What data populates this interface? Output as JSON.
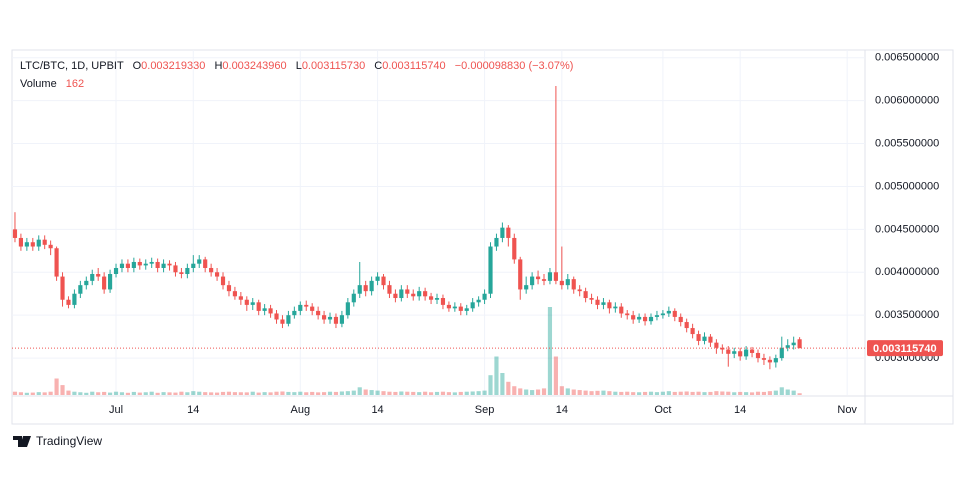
{
  "chart_data": {
    "type": "candlestick",
    "legend": {
      "symbol": "LTC/BTC, 1D, UPBIT",
      "o_label": "O",
      "o": "0.003219330",
      "h_label": "H",
      "h": "0.003243960",
      "l_label": "L",
      "l": "0.003115730",
      "c_label": "C",
      "c": "0.003115740",
      "change": "−0.000098830 (−3.07%)",
      "volume_label": "Volume",
      "volume": "162"
    },
    "branding": "TradingView",
    "up_color": "#26a69a",
    "down_color": "#ef5350",
    "grid": true,
    "xlim": [
      -0.5,
      143
    ],
    "xticks": [
      {
        "value": 17,
        "label": "Jul"
      },
      {
        "value": 30,
        "label": "14"
      },
      {
        "value": 48,
        "label": "Aug"
      },
      {
        "value": 61,
        "label": "14"
      },
      {
        "value": 79,
        "label": "Sep"
      },
      {
        "value": 92,
        "label": "14"
      },
      {
        "value": 109,
        "label": "Oct"
      },
      {
        "value": 122,
        "label": "14"
      },
      {
        "value": 140,
        "label": "Nov"
      }
    ],
    "ylim": [
      0.00257,
      0.00659
    ],
    "yticks": [
      {
        "value": 0.003,
        "label": "0.003000000"
      },
      {
        "value": 0.0035,
        "label": "0.003500000"
      },
      {
        "value": 0.004,
        "label": "0.004000000"
      },
      {
        "value": 0.0045,
        "label": "0.004500000"
      },
      {
        "value": 0.005,
        "label": "0.005000000"
      },
      {
        "value": 0.0055,
        "label": "0.005500000"
      },
      {
        "value": 0.006,
        "label": "0.006000000"
      },
      {
        "value": 0.0065,
        "label": "0.006500000"
      }
    ],
    "last_price": {
      "value": 0.00311574,
      "label": "0.003115740"
    },
    "open": [
      0.0045,
      0.0044,
      0.0043,
      0.00435,
      0.0043,
      0.00438,
      0.00432,
      0.00428,
      0.00395,
      0.00368,
      0.00362,
      0.00375,
      0.00385,
      0.0039,
      0.00398,
      0.00395,
      0.0038,
      0.00398,
      0.00405,
      0.0041,
      0.00405,
      0.00412,
      0.00408,
      0.0041,
      0.00412,
      0.00405,
      0.0041,
      0.00408,
      0.004,
      0.00398,
      0.00405,
      0.0041,
      0.00415,
      0.00405,
      0.004,
      0.00395,
      0.00385,
      0.00378,
      0.00372,
      0.00368,
      0.00362,
      0.00365,
      0.00355,
      0.00358,
      0.00352,
      0.00345,
      0.0034,
      0.0035,
      0.00355,
      0.00362,
      0.0036,
      0.00355,
      0.0035,
      0.00345,
      0.00348,
      0.0034,
      0.0035,
      0.00365,
      0.00375,
      0.00385,
      0.00378,
      0.0039,
      0.00395,
      0.00385,
      0.00375,
      0.0037,
      0.0038,
      0.00375,
      0.00372,
      0.00378,
      0.00372,
      0.00368,
      0.0037,
      0.00362,
      0.00358,
      0.0036,
      0.00355,
      0.00358,
      0.00365,
      0.00368,
      0.00375,
      0.0043,
      0.0044,
      0.00452,
      0.0044,
      0.00415,
      0.0038,
      0.00385,
      0.00395,
      0.00392,
      0.0039,
      0.004,
      0.0039,
      0.00385,
      0.00392,
      0.0038,
      0.00378,
      0.0037,
      0.00368,
      0.00362,
      0.00365,
      0.00358,
      0.0036,
      0.00352,
      0.0035,
      0.00345,
      0.00348,
      0.00343,
      0.00348,
      0.0035,
      0.00352,
      0.00355,
      0.00348,
      0.00342,
      0.00335,
      0.00328,
      0.0032,
      0.00325,
      0.00318,
      0.00312,
      0.0031,
      0.00305,
      0.00308,
      0.00302,
      0.0031,
      0.00306,
      0.003,
      0.00298,
      0.00295,
      0.003,
      0.00312,
      0.00315,
      0.00321933
    ],
    "high": [
      0.0047,
      0.00445,
      0.0044,
      0.0044,
      0.00443,
      0.00443,
      0.00437,
      0.0043,
      0.004,
      0.00372,
      0.0038,
      0.0039,
      0.00395,
      0.00403,
      0.00405,
      0.004,
      0.00403,
      0.0041,
      0.00415,
      0.00415,
      0.00417,
      0.00416,
      0.00415,
      0.00417,
      0.00416,
      0.00415,
      0.00414,
      0.00412,
      0.00405,
      0.0041,
      0.0042,
      0.0042,
      0.00418,
      0.0041,
      0.00405,
      0.004,
      0.0039,
      0.00383,
      0.00377,
      0.00372,
      0.0037,
      0.00368,
      0.00363,
      0.00362,
      0.00356,
      0.0035,
      0.00355,
      0.0036,
      0.00366,
      0.00367,
      0.00364,
      0.0036,
      0.00355,
      0.00353,
      0.00352,
      0.00355,
      0.0037,
      0.0038,
      0.00412,
      0.0039,
      0.00395,
      0.004,
      0.00398,
      0.0039,
      0.0038,
      0.00385,
      0.00385,
      0.0038,
      0.00383,
      0.00382,
      0.00376,
      0.00375,
      0.00374,
      0.00366,
      0.00365,
      0.00364,
      0.00362,
      0.0037,
      0.00372,
      0.0038,
      0.00435,
      0.00445,
      0.00458,
      0.00455,
      0.00445,
      0.00418,
      0.00395,
      0.004,
      0.00402,
      0.00398,
      0.00405,
      0.00617,
      0.0043,
      0.00398,
      0.00395,
      0.00385,
      0.00382,
      0.00375,
      0.00372,
      0.0037,
      0.00368,
      0.00365,
      0.00364,
      0.00356,
      0.00355,
      0.00352,
      0.00352,
      0.00352,
      0.00355,
      0.00356,
      0.0036,
      0.00358,
      0.00352,
      0.00346,
      0.0034,
      0.00332,
      0.0033,
      0.00328,
      0.00322,
      0.00316,
      0.00314,
      0.00312,
      0.00312,
      0.00314,
      0.00313,
      0.0031,
      0.00305,
      0.00302,
      0.00304,
      0.00325,
      0.00322,
      0.00325,
      0.00324396
    ],
    "low": [
      0.00435,
      0.00425,
      0.00425,
      0.00425,
      0.00425,
      0.00427,
      0.0042,
      0.0039,
      0.0036,
      0.00358,
      0.00358,
      0.0037,
      0.0038,
      0.00385,
      0.0039,
      0.00375,
      0.00376,
      0.00394,
      0.004,
      0.004,
      0.004,
      0.00403,
      0.00403,
      0.00405,
      0.004,
      0.004,
      0.00402,
      0.00395,
      0.00393,
      0.00393,
      0.004,
      0.00405,
      0.004,
      0.00395,
      0.0039,
      0.0038,
      0.00372,
      0.00368,
      0.00362,
      0.00355,
      0.00356,
      0.0035,
      0.0035,
      0.00347,
      0.0034,
      0.00335,
      0.00337,
      0.00346,
      0.0035,
      0.00355,
      0.0035,
      0.00345,
      0.0034,
      0.0034,
      0.00335,
      0.00336,
      0.00346,
      0.0036,
      0.0037,
      0.00372,
      0.00373,
      0.00385,
      0.0038,
      0.0037,
      0.00365,
      0.00366,
      0.0037,
      0.00367,
      0.00367,
      0.00367,
      0.00363,
      0.00363,
      0.00357,
      0.00354,
      0.00354,
      0.0035,
      0.0035,
      0.00354,
      0.0036,
      0.00363,
      0.0037,
      0.00425,
      0.00435,
      0.0043,
      0.0041,
      0.00368,
      0.00375,
      0.0038,
      0.00386,
      0.00385,
      0.00386,
      0.00386,
      0.0038,
      0.0038,
      0.00375,
      0.00372,
      0.00365,
      0.00363,
      0.00357,
      0.00357,
      0.00352,
      0.00353,
      0.00347,
      0.00345,
      0.0034,
      0.00341,
      0.00338,
      0.00339,
      0.00344,
      0.00346,
      0.00348,
      0.00343,
      0.00337,
      0.0033,
      0.00323,
      0.00315,
      0.00316,
      0.00313,
      0.00305,
      0.00305,
      0.0029,
      0.003,
      0.00297,
      0.00298,
      0.00301,
      0.00295,
      0.00292,
      0.00287,
      0.00289,
      0.00297,
      0.00308,
      0.0031,
      0.00311573
    ],
    "close": [
      0.0044,
      0.0043,
      0.00435,
      0.0043,
      0.00438,
      0.00432,
      0.00428,
      0.00395,
      0.00368,
      0.00362,
      0.00375,
      0.00385,
      0.0039,
      0.00398,
      0.00395,
      0.0038,
      0.00398,
      0.00405,
      0.0041,
      0.00405,
      0.00412,
      0.00408,
      0.0041,
      0.00412,
      0.00405,
      0.0041,
      0.00408,
      0.004,
      0.00398,
      0.00405,
      0.0041,
      0.00415,
      0.00405,
      0.004,
      0.00395,
      0.00385,
      0.00378,
      0.00372,
      0.00368,
      0.00362,
      0.00365,
      0.00355,
      0.00358,
      0.00352,
      0.00345,
      0.0034,
      0.0035,
      0.00355,
      0.00362,
      0.0036,
      0.00355,
      0.0035,
      0.00345,
      0.00348,
      0.0034,
      0.0035,
      0.00365,
      0.00375,
      0.00385,
      0.00378,
      0.0039,
      0.00395,
      0.00385,
      0.00375,
      0.0037,
      0.0038,
      0.00375,
      0.00372,
      0.00378,
      0.00372,
      0.00368,
      0.0037,
      0.00362,
      0.00358,
      0.0036,
      0.00355,
      0.00358,
      0.00365,
      0.00368,
      0.00375,
      0.0043,
      0.0044,
      0.00452,
      0.0044,
      0.00415,
      0.0038,
      0.00385,
      0.00395,
      0.00392,
      0.0039,
      0.004,
      0.0039,
      0.00385,
      0.00392,
      0.0038,
      0.00378,
      0.0037,
      0.00368,
      0.00362,
      0.00365,
      0.00358,
      0.0036,
      0.00352,
      0.0035,
      0.00345,
      0.00348,
      0.00343,
      0.00348,
      0.0035,
      0.00352,
      0.00355,
      0.00348,
      0.00342,
      0.00335,
      0.00328,
      0.0032,
      0.00325,
      0.00318,
      0.00312,
      0.0031,
      0.00305,
      0.00308,
      0.00302,
      0.0031,
      0.00306,
      0.003,
      0.00298,
      0.00295,
      0.003,
      0.00312,
      0.00315,
      0.00318,
      0.00311574
    ],
    "volume": [
      300,
      250,
      200,
      220,
      260,
      240,
      300,
      1500,
      900,
      400,
      300,
      250,
      200,
      300,
      250,
      280,
      220,
      300,
      250,
      200,
      280,
      220,
      250,
      300,
      200,
      260,
      240,
      220,
      300,
      250,
      350,
      300,
      260,
      240,
      220,
      280,
      300,
      260,
      250,
      240,
      300,
      220,
      260,
      240,
      300,
      320,
      280,
      260,
      300,
      250,
      280,
      240,
      260,
      300,
      280,
      320,
      350,
      400,
      700,
      500,
      450,
      400,
      350,
      300,
      280,
      320,
      300,
      280,
      260,
      300,
      250,
      280,
      300,
      260,
      240,
      280,
      300,
      320,
      350,
      400,
      1800,
      3500,
      2000,
      1200,
      800,
      600,
      500,
      450,
      500,
      600,
      8000,
      3500,
      800,
      600,
      500,
      450,
      400,
      350,
      380,
      400,
      350,
      300,
      280,
      300,
      260,
      250,
      280,
      300,
      260,
      300,
      350,
      280,
      300,
      320,
      280,
      300,
      260,
      280,
      350,
      320,
      300,
      250,
      280,
      260,
      240,
      300,
      280,
      350,
      400,
      700,
      500,
      400,
      162
    ]
  }
}
